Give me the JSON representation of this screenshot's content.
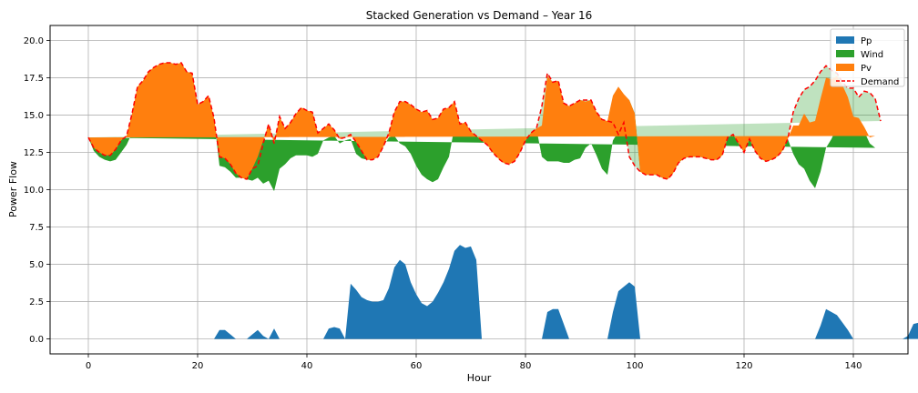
{
  "chart_data": {
    "type": "area",
    "title": "Stacked Generation vs Demand – Year 16",
    "xlabel": "Hour",
    "ylabel": "Power Flow",
    "xlim": [
      -7,
      150
    ],
    "ylim": [
      -1,
      21
    ],
    "xticks": [
      0,
      20,
      40,
      60,
      80,
      100,
      120,
      140
    ],
    "yticks": [
      0.0,
      2.5,
      5.0,
      7.5,
      10.0,
      12.5,
      15.0,
      17.5,
      20.0
    ],
    "xtick_labels": [
      "0",
      "20",
      "40",
      "60",
      "80",
      "100",
      "120",
      "140"
    ],
    "ytick_labels": [
      "0.0",
      "2.5",
      "5.0",
      "7.5",
      "10.0",
      "12.5",
      "15.0",
      "17.5",
      "20.0"
    ],
    "grid": true,
    "legend_position": "top-right",
    "series": [
      {
        "name": "Pp",
        "color": "#1f77b4",
        "values": [
          0,
          0,
          0,
          0,
          0,
          0,
          0,
          0,
          0,
          0,
          0,
          0,
          0,
          0,
          0,
          0,
          0,
          0,
          0,
          0,
          0,
          0,
          0,
          0,
          0.6,
          0.6,
          0.3,
          0,
          0,
          0,
          0.3,
          0.6,
          0.2,
          0,
          0.7,
          0,
          0,
          0,
          0,
          0,
          0,
          0,
          0,
          0,
          0.7,
          0.8,
          0.7,
          0,
          3.7,
          3.3,
          2.8,
          2.6,
          2.5,
          2.5,
          2.6,
          3.4,
          4.8,
          5.3,
          5.0,
          3.8,
          3.0,
          2.4,
          2.2,
          2.5,
          3.1,
          3.8,
          4.7,
          5.9,
          6.3,
          6.1,
          6.2,
          5.3,
          0,
          0,
          0,
          0,
          0,
          0,
          0,
          0,
          0,
          0,
          0,
          0,
          1.8,
          2.0,
          2.0,
          1.0,
          0,
          0,
          0,
          0,
          0,
          0,
          0,
          0,
          1.8,
          3.2,
          3.5,
          3.8,
          3.5,
          0,
          0,
          0,
          0,
          0,
          0,
          0,
          0,
          0,
          0,
          0,
          0,
          0,
          0,
          0,
          0,
          0,
          0,
          0,
          0,
          0,
          0,
          0,
          0,
          0,
          0,
          0,
          0,
          0,
          0,
          0,
          0,
          0,
          0.9,
          2.0,
          1.8,
          1.6,
          1.1,
          0.6,
          0,
          0,
          0,
          0,
          0,
          0,
          0,
          0,
          0,
          0,
          0.2,
          1.0,
          1.1
        ]
      },
      {
        "name": "Wind",
        "color": "#2ca02c",
        "values": [
          13.5,
          12.6,
          12.2,
          12.0,
          11.9,
          12.0,
          12.5,
          13.0,
          13.8,
          14.3,
          14.5,
          14.6,
          14.4,
          14.6,
          14.8,
          15.0,
          15.2,
          15.4,
          15.1,
          14.9,
          14.7,
          15.3,
          15.2,
          14.8,
          11.0,
          10.9,
          10.9,
          10.8,
          10.8,
          10.7,
          10.3,
          10.2,
          10.2,
          10.6,
          9.2,
          11.4,
          11.7,
          12.1,
          12.3,
          12.3,
          12.3,
          12.2,
          12.4,
          13.3,
          12.8,
          12.8,
          12.4,
          13.3,
          9.7,
          9.1,
          9.3,
          9.4,
          9.5,
          9.7,
          10.3,
          10.1,
          8.8,
          7.8,
          7.9,
          8.6,
          8.6,
          8.6,
          8.5,
          8.0,
          7.6,
          7.7,
          7.5,
          8.3,
          8.0,
          8.1,
          7.6,
          8.3,
          13.3,
          13.0,
          12.5,
          12.1,
          11.8,
          11.7,
          11.9,
          12.5,
          13.3,
          13.8,
          14.1,
          12.2,
          10.1,
          9.9,
          9.9,
          10.8,
          11.8,
          12.0,
          12.1,
          12.8,
          13.1,
          12.3,
          11.4,
          11.0,
          11.5,
          10.7,
          12.6,
          12.2,
          11.6,
          11.2,
          11.0,
          11.0,
          11.0,
          10.8,
          10.7,
          11.1,
          11.8,
          12.1,
          12.2,
          12.2,
          12.2,
          12.1,
          12.0,
          12.0,
          12.3,
          13.5,
          13.7,
          13.1,
          12.5,
          13.4,
          12.6,
          12.1,
          11.9,
          12.0,
          12.2,
          12.6,
          13.4,
          12.4,
          11.7,
          11.4,
          10.6,
          10.1,
          10.3,
          10.8,
          11.6,
          12.6,
          13.5,
          14.4,
          14.7,
          14.6,
          13.9,
          13.1,
          12.8
        ]
      },
      {
        "name": "Pv",
        "color": "#ff7f0e",
        "values": [
          0,
          0.2,
          0.3,
          0.3,
          0.4,
          0.7,
          0.8,
          0.6,
          1.3,
          2.6,
          2.8,
          3.3,
          3.8,
          3.8,
          3.7,
          3.5,
          3.2,
          3.1,
          2.8,
          2.9,
          1.0,
          0.6,
          1.1,
          0,
          0.6,
          0.6,
          0.5,
          0.3,
          0,
          0,
          0.8,
          1.4,
          2.9,
          3.8,
          3.2,
          3.5,
          2.4,
          2.4,
          2.8,
          3.2,
          3.0,
          3.0,
          1.4,
          0.8,
          0.9,
          0.4,
          0.3,
          0.2,
          0.3,
          0.8,
          0.5,
          0,
          0,
          0,
          0,
          0.3,
          1.6,
          2.8,
          3.0,
          3.3,
          3.8,
          4.2,
          4.6,
          4.2,
          4.1,
          3.9,
          3.3,
          1.7,
          0.1,
          0.3,
          0.1,
          0,
          0,
          0,
          0,
          0,
          0,
          0,
          0,
          0,
          0,
          0,
          0,
          2.1,
          5.7,
          5.3,
          5.4,
          4.0,
          3.8,
          3.8,
          3.9,
          3.1,
          2.9,
          2.9,
          3.3,
          3.6,
          3.0,
          3.0,
          0.3,
          0,
          0,
          0,
          0,
          0,
          0,
          0,
          0,
          0,
          0,
          0,
          0,
          0,
          0,
          0,
          0,
          0,
          0,
          0,
          0,
          0,
          0,
          0,
          0,
          0,
          0,
          0,
          0,
          0,
          0,
          1.9,
          2.6,
          3.7,
          3.9,
          4.5,
          4.9,
          4.7,
          4.0,
          3.4,
          2.4,
          1.2,
          0.2,
          0.2,
          0.3,
          0.4,
          0.8,
          0.5
        ]
      },
      {
        "name": "Demand",
        "color": "#ff0000",
        "style": "dashed",
        "values": [
          13.5,
          12.8,
          12.5,
          12.3,
          12.3,
          12.7,
          13.3,
          13.6,
          15.1,
          16.9,
          17.3,
          17.9,
          18.2,
          18.4,
          18.5,
          18.5,
          18.4,
          18.5,
          17.9,
          17.8,
          15.7,
          15.9,
          16.3,
          14.8,
          12.2,
          12.1,
          11.7,
          11.1,
          10.8,
          10.7,
          11.4,
          11.6,
          13.1,
          14.4,
          13.1,
          14.9,
          14.1,
          14.5,
          15.1,
          15.5,
          15.3,
          15.2,
          13.8,
          14.1,
          14.4,
          14.0,
          13.4,
          13.5,
          13.7,
          13.2,
          12.6,
          12.0,
          12.0,
          12.2,
          12.9,
          13.8,
          15.2,
          15.9,
          15.9,
          15.7,
          15.4,
          15.2,
          15.3,
          14.7,
          14.8,
          15.4,
          15.5,
          15.9,
          14.4,
          14.5,
          13.9,
          13.6,
          13.3,
          13.0,
          12.5,
          12.1,
          11.8,
          11.7,
          11.9,
          12.5,
          13.3,
          13.8,
          14.1,
          15.6,
          17.8,
          17.2,
          17.3,
          15.8,
          15.6,
          15.8,
          16.0,
          16.0,
          16.0,
          15.2,
          14.7,
          14.6,
          14.5,
          13.7,
          14.5,
          12.2,
          11.6,
          11.2,
          11.0,
          11.0,
          11.0,
          10.8,
          10.7,
          11.1,
          11.8,
          12.1,
          12.2,
          12.2,
          12.2,
          12.1,
          12.0,
          12.0,
          12.3,
          13.5,
          13.7,
          13.1,
          12.5,
          13.4,
          12.6,
          12.1,
          11.9,
          12.0,
          12.2,
          12.6,
          13.4,
          15.2,
          16.1,
          16.7,
          16.9,
          17.3,
          17.9,
          18.3,
          18.0,
          17.8,
          17.2,
          16.8,
          16.8,
          16.2,
          16.6,
          16.5,
          16.1,
          14.6
        ]
      }
    ]
  }
}
